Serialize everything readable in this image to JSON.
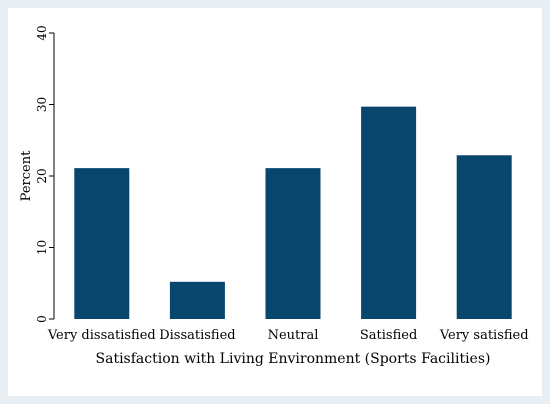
{
  "chart_data": {
    "type": "bar",
    "categories": [
      "Very dissatisfied",
      "Dissatisfied",
      "Neutral",
      "Satisfied",
      "Very satisfied"
    ],
    "values": [
      21.1,
      5.2,
      21.1,
      29.7,
      22.9
    ],
    "title": "",
    "xlabel": "Satisfaction with Living Environment (Sports Facilities)",
    "ylabel": "Percent",
    "ylim": [
      0,
      40
    ],
    "yticks": [
      0,
      10,
      20,
      30,
      40
    ],
    "grid": false
  },
  "colors": {
    "outer_background": "#e8eef2",
    "plot_background": "#ffffff",
    "bar": "#08466e",
    "axis": "#000000"
  }
}
